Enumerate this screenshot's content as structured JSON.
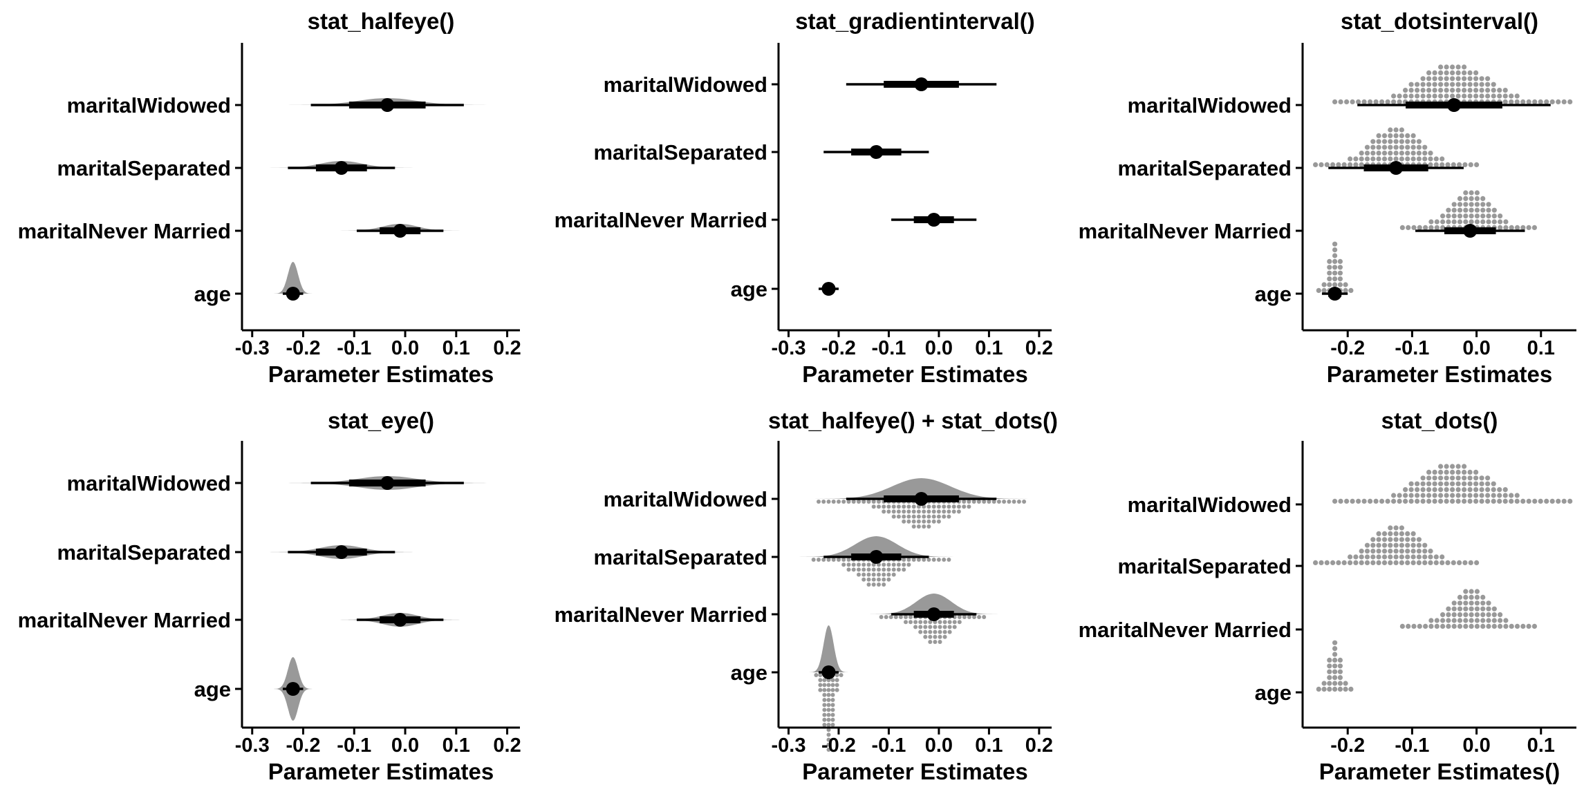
{
  "chart_data": [
    {
      "type": "interval",
      "title": "stat_halfeye()",
      "xlabel": "Parameter Estimates",
      "xlim": [
        -0.32,
        0.225
      ],
      "x_ticks": [
        "-0.3",
        "-0.2",
        "-0.1",
        "0.0",
        "0.1",
        "0.2"
      ],
      "categories": [
        "maritalWidowed",
        "maritalSeparated",
        "maritalNever Married",
        "age"
      ],
      "elements": [
        "halfeye",
        "pointinterval"
      ],
      "estimates": [
        {
          "category": "maritalWidowed",
          "median": -0.035,
          "q66": [
            -0.11,
            0.04
          ],
          "q95": [
            -0.185,
            0.115
          ],
          "sd": 0.058
        },
        {
          "category": "maritalSeparated",
          "median": -0.125,
          "q66": [
            -0.175,
            -0.075
          ],
          "q95": [
            -0.23,
            -0.02
          ],
          "sd": 0.042
        },
        {
          "category": "maritalNever Married",
          "median": -0.01,
          "q66": [
            -0.05,
            0.03
          ],
          "q95": [
            -0.095,
            0.075
          ],
          "sd": 0.035
        },
        {
          "category": "age",
          "median": -0.22,
          "q66": [
            -0.23,
            -0.21
          ],
          "q95": [
            -0.24,
            -0.2
          ],
          "sd": 0.01
        }
      ]
    },
    {
      "type": "interval",
      "title": "stat_gradientinterval()",
      "xlabel": "Parameter Estimates",
      "xlim": [
        -0.32,
        0.225
      ],
      "x_ticks": [
        "-0.3",
        "-0.2",
        "-0.1",
        "0.0",
        "0.1",
        "0.2"
      ],
      "categories": [
        "maritalWidowed",
        "maritalSeparated",
        "maritalNever Married",
        "age"
      ],
      "elements": [
        "pointinterval"
      ],
      "estimates": [
        {
          "category": "maritalWidowed",
          "median": -0.035,
          "q66": [
            -0.11,
            0.04
          ],
          "q95": [
            -0.185,
            0.115
          ]
        },
        {
          "category": "maritalSeparated",
          "median": -0.125,
          "q66": [
            -0.175,
            -0.075
          ],
          "q95": [
            -0.23,
            -0.02
          ]
        },
        {
          "category": "maritalNever Married",
          "median": -0.01,
          "q66": [
            -0.05,
            0.03
          ],
          "q95": [
            -0.095,
            0.075
          ]
        },
        {
          "category": "age",
          "median": -0.22,
          "q66": [
            -0.23,
            -0.21
          ],
          "q95": [
            -0.24,
            -0.2
          ]
        }
      ]
    },
    {
      "type": "interval",
      "title": "stat_dotsinterval()",
      "xlabel": "Parameter Estimates",
      "xlim": [
        -0.27,
        0.155
      ],
      "x_ticks": [
        "-0.2",
        "-0.1",
        "0.0",
        "0.1"
      ],
      "categories": [
        "maritalWidowed",
        "maritalSeparated",
        "maritalNever Married",
        "age"
      ],
      "elements": [
        "dots",
        "pointinterval"
      ],
      "estimates": [
        {
          "category": "maritalWidowed",
          "median": -0.035,
          "q66": [
            -0.11,
            0.04
          ],
          "q95": [
            -0.185,
            0.115
          ],
          "sd": 0.058,
          "range": [
            -0.22,
            0.145
          ]
        },
        {
          "category": "maritalSeparated",
          "median": -0.125,
          "q66": [
            -0.175,
            -0.075
          ],
          "q95": [
            -0.23,
            -0.02
          ],
          "sd": 0.042,
          "range": [
            -0.25,
            0.0
          ]
        },
        {
          "category": "maritalNever Married",
          "median": -0.01,
          "q66": [
            -0.05,
            0.03
          ],
          "q95": [
            -0.095,
            0.075
          ],
          "sd": 0.035,
          "range": [
            -0.115,
            0.09
          ]
        },
        {
          "category": "age",
          "median": -0.22,
          "q66": [
            -0.23,
            -0.21
          ],
          "q95": [
            -0.24,
            -0.2
          ],
          "sd": 0.01,
          "range": [
            -0.245,
            -0.195
          ]
        }
      ]
    },
    {
      "type": "interval",
      "title": "stat_eye()",
      "xlabel": "Parameter Estimates",
      "xlim": [
        -0.32,
        0.225
      ],
      "x_ticks": [
        "-0.3",
        "-0.2",
        "-0.1",
        "0.0",
        "0.1",
        "0.2"
      ],
      "categories": [
        "maritalWidowed",
        "maritalSeparated",
        "maritalNever Married",
        "age"
      ],
      "elements": [
        "eye",
        "pointinterval"
      ],
      "estimates": [
        {
          "category": "maritalWidowed",
          "median": -0.035,
          "q66": [
            -0.11,
            0.04
          ],
          "q95": [
            -0.185,
            0.115
          ],
          "sd": 0.058
        },
        {
          "category": "maritalSeparated",
          "median": -0.125,
          "q66": [
            -0.175,
            -0.075
          ],
          "q95": [
            -0.23,
            -0.02
          ],
          "sd": 0.042
        },
        {
          "category": "maritalNever Married",
          "median": -0.01,
          "q66": [
            -0.05,
            0.03
          ],
          "q95": [
            -0.095,
            0.075
          ],
          "sd": 0.035
        },
        {
          "category": "age",
          "median": -0.22,
          "q66": [
            -0.23,
            -0.21
          ],
          "q95": [
            -0.24,
            -0.2
          ],
          "sd": 0.01
        }
      ]
    },
    {
      "type": "interval",
      "title": "stat_halfeye() + stat_dots()",
      "xlabel": "Parameter Estimates",
      "xlim": [
        -0.32,
        0.225
      ],
      "x_ticks": [
        "-0.3",
        "-0.2",
        "-0.1",
        "0.0",
        "0.1",
        "0.2"
      ],
      "categories": [
        "maritalWidowed",
        "maritalSeparated",
        "maritalNever Married",
        "age"
      ],
      "elements": [
        "halfeye",
        "dots-below",
        "pointinterval"
      ],
      "estimates": [
        {
          "category": "maritalWidowed",
          "median": -0.035,
          "q66": [
            -0.11,
            0.04
          ],
          "q95": [
            -0.185,
            0.115
          ],
          "sd": 0.058,
          "range": [
            -0.24,
            0.17
          ]
        },
        {
          "category": "maritalSeparated",
          "median": -0.125,
          "q66": [
            -0.175,
            -0.075
          ],
          "q95": [
            -0.23,
            -0.02
          ],
          "sd": 0.042,
          "range": [
            -0.25,
            0.02
          ]
        },
        {
          "category": "maritalNever Married",
          "median": -0.01,
          "q66": [
            -0.05,
            0.03
          ],
          "q95": [
            -0.095,
            0.075
          ],
          "sd": 0.035,
          "range": [
            -0.115,
            0.09
          ]
        },
        {
          "category": "age",
          "median": -0.22,
          "q66": [
            -0.23,
            -0.21
          ],
          "q95": [
            -0.24,
            -0.2
          ],
          "sd": 0.01,
          "range": [
            -0.245,
            -0.195
          ]
        }
      ]
    },
    {
      "type": "interval",
      "title": "stat_dots()",
      "xlabel": "Parameter Estimates()",
      "xlim": [
        -0.27,
        0.155
      ],
      "x_ticks": [
        "-0.2",
        "-0.1",
        "0.0",
        "0.1"
      ],
      "categories": [
        "maritalWidowed",
        "maritalSeparated",
        "maritalNever Married",
        "age"
      ],
      "elements": [
        "dots"
      ],
      "estimates": [
        {
          "category": "maritalWidowed",
          "median": -0.035,
          "sd": 0.058,
          "range": [
            -0.22,
            0.145
          ]
        },
        {
          "category": "maritalSeparated",
          "median": -0.125,
          "sd": 0.042,
          "range": [
            -0.25,
            0.0
          ]
        },
        {
          "category": "maritalNever Married",
          "median": -0.01,
          "sd": 0.035,
          "range": [
            -0.115,
            0.09
          ]
        },
        {
          "category": "age",
          "median": -0.22,
          "sd": 0.01,
          "range": [
            -0.245,
            -0.195
          ]
        }
      ]
    }
  ],
  "colors": {
    "density": "#999999",
    "dots": "#999999",
    "interval": "#000000",
    "axis": "#000000",
    "background": "#ffffff"
  }
}
